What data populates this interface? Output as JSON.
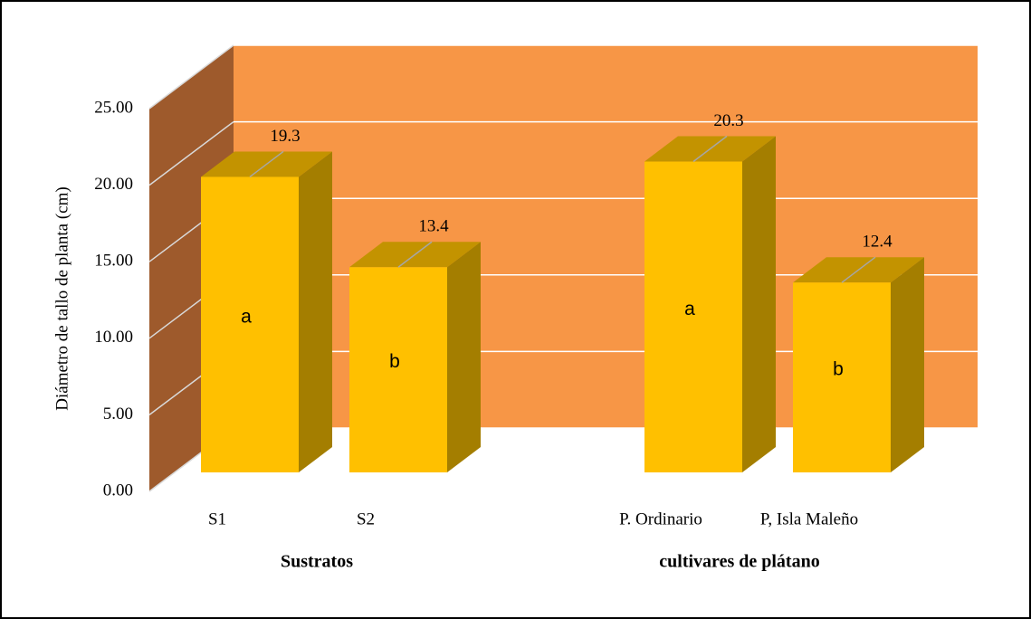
{
  "chart_data": {
    "type": "bar3d",
    "ylabel": "Diámetro de tallo  de planta (cm)",
    "groups": [
      {
        "name": "Sustratos",
        "categories": [
          "S1",
          "S2"
        ],
        "values": [
          19.3,
          13.4
        ],
        "letters": [
          "a",
          "b"
        ]
      },
      {
        "name": "cultivares de plátano",
        "categories": [
          "P. Ordinario",
          "P, Isla Maleño"
        ],
        "values": [
          20.3,
          12.4
        ],
        "letters": [
          "a",
          "b"
        ]
      }
    ],
    "color": "#FFC000",
    "ylim": [
      0,
      25
    ],
    "yticks": [
      {
        "value": 0,
        "label": "0.00"
      },
      {
        "value": 5,
        "label": "5.00"
      },
      {
        "value": 10,
        "label": "10.00"
      },
      {
        "value": 15,
        "label": "15.00"
      },
      {
        "value": 20,
        "label": "20.00"
      },
      {
        "value": 25,
        "label": "25.00"
      }
    ],
    "grid": true
  }
}
